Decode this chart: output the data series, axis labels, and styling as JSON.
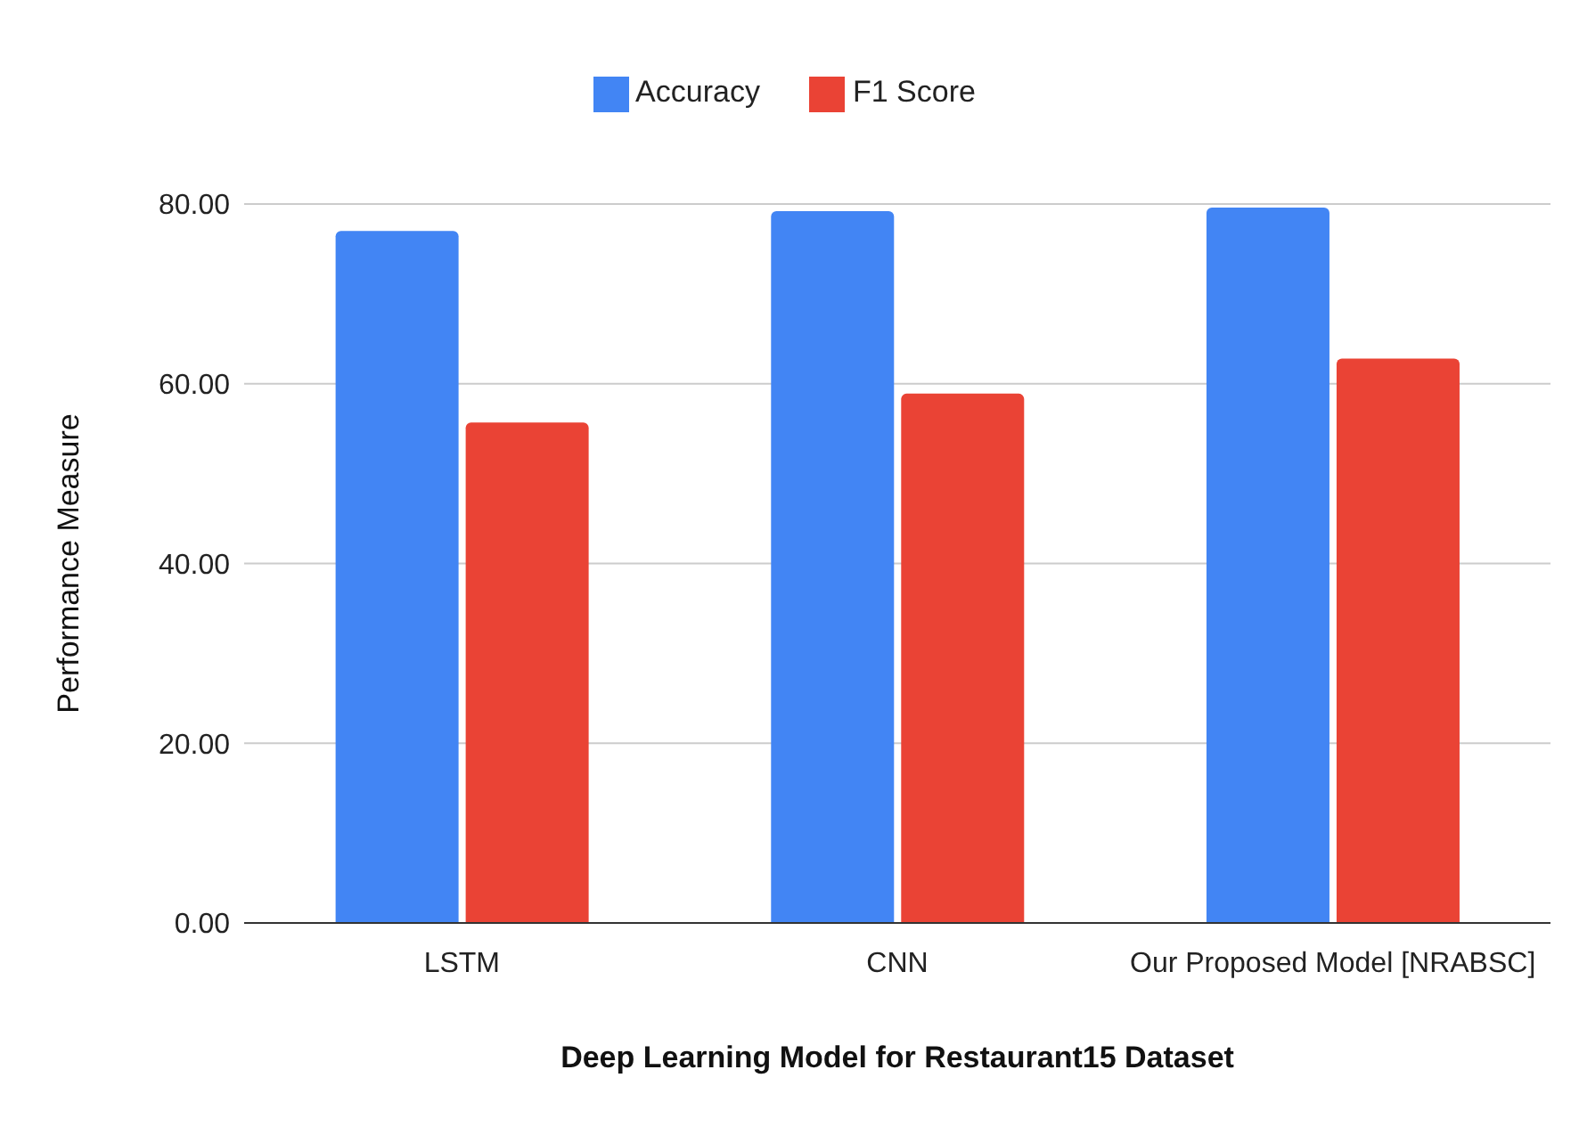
{
  "chart_data": {
    "type": "bar",
    "xlabel": "Deep Learning Model for Restaurant15 Dataset",
    "ylabel": "Performance Measure",
    "categories": [
      "LSTM",
      "CNN",
      "Our Proposed Model [NRABSC]"
    ],
    "series": [
      {
        "name": "Accuracy",
        "color": "#4285f4",
        "values": [
          77.0,
          79.2,
          79.6
        ]
      },
      {
        "name": "F1 Score",
        "color": "#ea4335",
        "values": [
          55.7,
          58.9,
          62.8
        ]
      }
    ],
    "ylim": [
      0,
      80
    ],
    "yticks": [
      {
        "value": 0,
        "label": "0.00"
      },
      {
        "value": 20,
        "label": "20.00"
      },
      {
        "value": 40,
        "label": "40.00"
      },
      {
        "value": 60,
        "label": "60.00"
      },
      {
        "value": 80,
        "label": "80.00"
      }
    ],
    "grid": "y",
    "legend": "top"
  }
}
